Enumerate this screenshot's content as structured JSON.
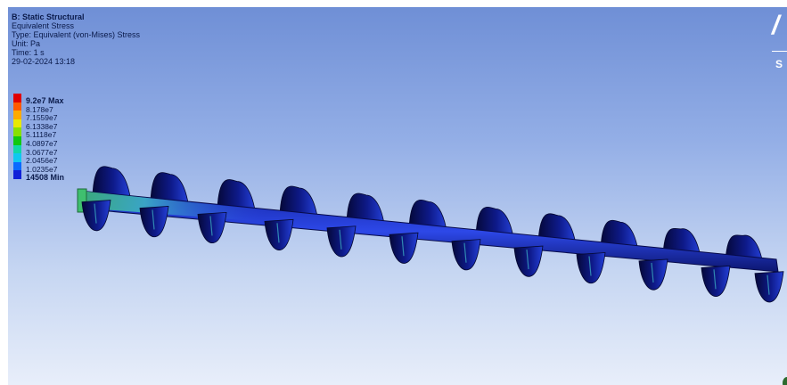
{
  "info": {
    "title": "B: Static Structural",
    "result": "Equivalent Stress",
    "type": "Type: Equivalent (von-Mises) Stress",
    "unit": "Unit: Pa",
    "time": "Time: 1 s",
    "date": "29-02-2024 13:18"
  },
  "legend": {
    "entries": [
      {
        "label": "9.2e7 Max",
        "color": "#e00000",
        "bold": true
      },
      {
        "label": "8.178e7",
        "color": "#ff5a00"
      },
      {
        "label": "7.1559e7",
        "color": "#ffaa00"
      },
      {
        "label": "6.1338e7",
        "color": "#e8e800"
      },
      {
        "label": "5.1118e7",
        "color": "#88e000"
      },
      {
        "label": "4.0897e7",
        "color": "#10c810"
      },
      {
        "label": "3.0677e7",
        "color": "#10d8a8"
      },
      {
        "label": "2.0456e7",
        "color": "#10c8f0"
      },
      {
        "label": "1.0235e7",
        "color": "#0a6aff"
      },
      {
        "label": "14508 Min",
        "color": "#1020d8",
        "bold": true
      }
    ]
  },
  "logo": {
    "text": "/",
    "sub": "S"
  },
  "colors": {
    "model_dark": "#0a0f5a",
    "model_mid": "#1a2ab8",
    "model_light": "#2d48e8",
    "stress_green": "#3fbf8f"
  }
}
